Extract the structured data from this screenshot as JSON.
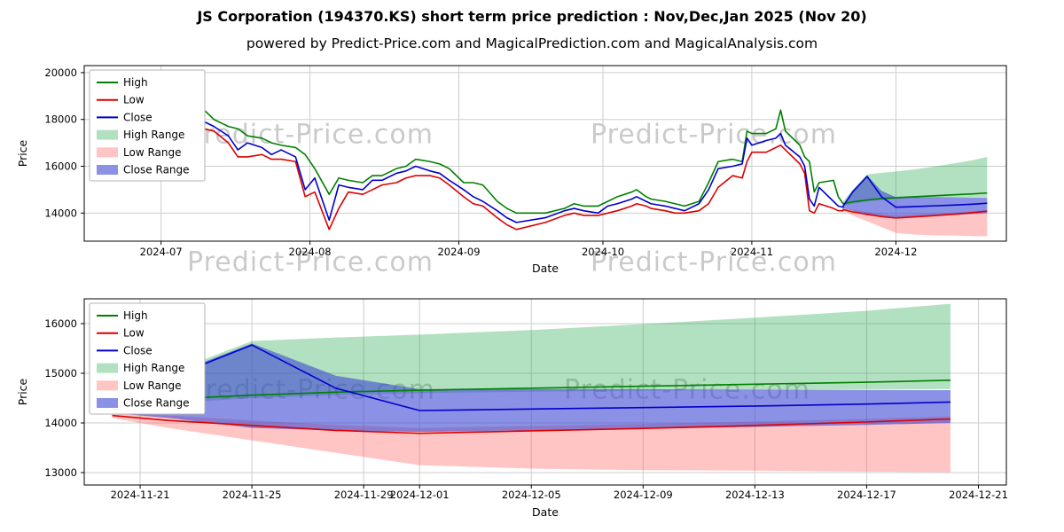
{
  "title": "JS Corporation (194370.KS) short term price prediction : Nov,Dec,Jan 2025 (Nov 20)",
  "subtitle": "powered by Predict-Price.com and MagicalPrediction.com and MagicalAnalysis.com",
  "watermark": "Predict-Price.com",
  "chart_data": {
    "type": "line",
    "colors": {
      "high": "#008000",
      "low": "#dd0000",
      "close": "#0000cc",
      "high_range": "rgba(0,155,50,0.30)",
      "low_range": "rgba(255,85,85,0.35)",
      "close_range": "rgba(62,72,210,0.60)"
    },
    "legend": [
      {
        "label": "High",
        "type": "line",
        "color_key": "high"
      },
      {
        "label": "Low",
        "type": "line",
        "color_key": "low"
      },
      {
        "label": "Close",
        "type": "line",
        "color_key": "close"
      },
      {
        "label": "High Range",
        "type": "patch",
        "color_key": "high_range"
      },
      {
        "label": "Low Range",
        "type": "patch",
        "color_key": "low_range"
      },
      {
        "label": "Close Range",
        "type": "patch",
        "color_key": "close_range"
      }
    ],
    "series_history": {
      "dates": [
        "2024-06-18",
        "2024-06-20",
        "2024-06-24",
        "2024-06-26",
        "2024-06-28",
        "2024-07-01",
        "2024-07-03",
        "2024-07-05",
        "2024-07-08",
        "2024-07-10",
        "2024-07-12",
        "2024-07-15",
        "2024-07-17",
        "2024-07-19",
        "2024-07-22",
        "2024-07-24",
        "2024-07-26",
        "2024-07-29",
        "2024-07-31",
        "2024-08-02",
        "2024-08-05",
        "2024-08-07",
        "2024-08-09",
        "2024-08-12",
        "2024-08-14",
        "2024-08-16",
        "2024-08-19",
        "2024-08-21",
        "2024-08-23",
        "2024-08-26",
        "2024-08-28",
        "2024-08-30",
        "2024-09-02",
        "2024-09-04",
        "2024-09-06",
        "2024-09-09",
        "2024-09-11",
        "2024-09-13",
        "2024-09-19",
        "2024-09-23",
        "2024-09-25",
        "2024-09-27",
        "2024-09-30",
        "2024-10-02",
        "2024-10-04",
        "2024-10-07",
        "2024-10-08",
        "2024-10-10",
        "2024-10-11",
        "2024-10-14",
        "2024-10-16",
        "2024-10-18",
        "2024-10-21",
        "2024-10-23",
        "2024-10-25",
        "2024-10-28",
        "2024-10-30",
        "2024-10-31",
        "2024-11-01",
        "2024-11-04",
        "2024-11-06",
        "2024-11-07",
        "2024-11-08",
        "2024-11-11",
        "2024-11-12",
        "2024-11-13",
        "2024-11-14",
        "2024-11-15",
        "2024-11-18",
        "2024-11-19",
        "2024-11-20"
      ],
      "high": [
        19700,
        19900,
        19400,
        18900,
        19100,
        19000,
        18600,
        18400,
        19400,
        18400,
        18000,
        17700,
        17600,
        17300,
        17200,
        17000,
        16900,
        16800,
        16500,
        15900,
        14800,
        15500,
        15400,
        15300,
        15600,
        15600,
        15900,
        16000,
        16300,
        16200,
        16100,
        15900,
        15300,
        15300,
        15200,
        14500,
        14200,
        14000,
        14000,
        14200,
        14400,
        14300,
        14300,
        14500,
        14700,
        14900,
        15000,
        14700,
        14600,
        14500,
        14400,
        14300,
        14500,
        15300,
        16200,
        16300,
        16200,
        17500,
        17400,
        17400,
        17600,
        18400,
        17500,
        16900,
        16400,
        16200,
        14900,
        15300,
        15400,
        14700,
        14400
      ],
      "low": [
        18400,
        18900,
        18300,
        18100,
        18300,
        18300,
        17800,
        17900,
        18100,
        17600,
        17500,
        17000,
        16400,
        16400,
        16500,
        16300,
        16300,
        16200,
        14700,
        14900,
        13300,
        14200,
        14900,
        14800,
        15000,
        15200,
        15300,
        15500,
        15600,
        15600,
        15500,
        15200,
        14700,
        14400,
        14300,
        13800,
        13500,
        13300,
        13600,
        13900,
        14000,
        13900,
        13900,
        14000,
        14100,
        14300,
        14400,
        14300,
        14200,
        14100,
        14000,
        14000,
        14100,
        14400,
        15100,
        15600,
        15500,
        16200,
        16600,
        16600,
        16800,
        16900,
        16700,
        16100,
        15700,
        14100,
        14000,
        14400,
        14200,
        14100,
        14100
      ],
      "close": [
        19100,
        19500,
        18600,
        18400,
        18900,
        18500,
        18100,
        18200,
        18400,
        17900,
        17700,
        17300,
        16700,
        17000,
        16800,
        16500,
        16700,
        16400,
        15000,
        15500,
        13700,
        15200,
        15100,
        15000,
        15400,
        15400,
        15700,
        15800,
        16000,
        15800,
        15700,
        15400,
        15000,
        14700,
        14500,
        14100,
        13800,
        13600,
        13800,
        14100,
        14200,
        14100,
        14000,
        14300,
        14400,
        14600,
        14700,
        14500,
        14400,
        14300,
        14200,
        14100,
        14400,
        15000,
        15900,
        16000,
        16100,
        17200,
        16900,
        17100,
        17200,
        17400,
        16900,
        16400,
        16000,
        14600,
        14300,
        15100,
        14500,
        14300,
        14250
      ]
    },
    "series_prediction": {
      "dates": [
        "2024-11-20",
        "2024-11-22",
        "2024-11-25",
        "2024-11-28",
        "2024-12-01",
        "2024-12-05",
        "2024-12-09",
        "2024-12-13",
        "2024-12-17",
        "2024-12-20"
      ],
      "high": [
        14400,
        14480,
        14560,
        14620,
        14660,
        14700,
        14740,
        14780,
        14820,
        14860
      ],
      "low": [
        14150,
        14050,
        13950,
        13850,
        13790,
        13840,
        13890,
        13950,
        14020,
        14080
      ],
      "close": [
        14300,
        14900,
        15570,
        14700,
        14250,
        14280,
        14310,
        14340,
        14380,
        14420
      ],
      "high_range_upper": [
        14500,
        15000,
        15650,
        15720,
        15780,
        15870,
        15990,
        16120,
        16260,
        16400
      ],
      "high_range_lower": [
        14300,
        14400,
        14500,
        14560,
        14600,
        14630,
        14650,
        14660,
        14670,
        14680
      ],
      "low_range_upper": [
        14200,
        14150,
        14050,
        13960,
        13900,
        13940,
        13980,
        14030,
        14080,
        14130
      ],
      "low_range_lower": [
        14100,
        13900,
        13650,
        13400,
        13150,
        13080,
        13050,
        13040,
        13020,
        13010
      ],
      "close_range_upper": [
        14350,
        14950,
        15600,
        14950,
        14680,
        14680,
        14680,
        14670,
        14660,
        14660
      ],
      "close_range_lower": [
        14200,
        14100,
        13900,
        13850,
        13820,
        13850,
        13880,
        13920,
        13960,
        14000
      ]
    },
    "charts": [
      {
        "name": "history-with-prediction-chart",
        "xlabel": "Date",
        "ylabel": "Price",
        "ylim": [
          12800,
          20300
        ],
        "yticks": [
          14000,
          16000,
          18000,
          20000
        ],
        "xlim": [
          "2024-06-15",
          "2024-12-24"
        ],
        "xticks": [
          {
            "date": "2024-07-01",
            "label": "2024-07"
          },
          {
            "date": "2024-08-01",
            "label": "2024-08"
          },
          {
            "date": "2024-09-01",
            "label": "2024-09"
          },
          {
            "date": "2024-10-01",
            "label": "2024-10"
          },
          {
            "date": "2024-11-01",
            "label": "2024-11"
          },
          {
            "date": "2024-12-01",
            "label": "2024-12"
          }
        ],
        "show_history": true,
        "show_prediction": true
      },
      {
        "name": "prediction-zoom-chart",
        "xlabel": "Date",
        "ylabel": "Price",
        "ylim": [
          12750,
          16500
        ],
        "yticks": [
          13000,
          14000,
          15000,
          16000
        ],
        "xlim": [
          "2024-11-19",
          "2024-12-22"
        ],
        "xticks": [
          {
            "date": "2024-11-21",
            "label": "2024-11-21"
          },
          {
            "date": "2024-11-25",
            "label": "2024-11-25"
          },
          {
            "date": "2024-11-29",
            "label": "2024-11-29"
          },
          {
            "date": "2024-12-01",
            "label": "2024-12-01"
          },
          {
            "date": "2024-12-05",
            "label": "2024-12-05"
          },
          {
            "date": "2024-12-09",
            "label": "2024-12-09"
          },
          {
            "date": "2024-12-13",
            "label": "2024-12-13"
          },
          {
            "date": "2024-12-17",
            "label": "2024-12-17"
          },
          {
            "date": "2024-12-21",
            "label": "2024-12-21"
          }
        ],
        "show_history": false,
        "show_prediction": true
      }
    ]
  }
}
